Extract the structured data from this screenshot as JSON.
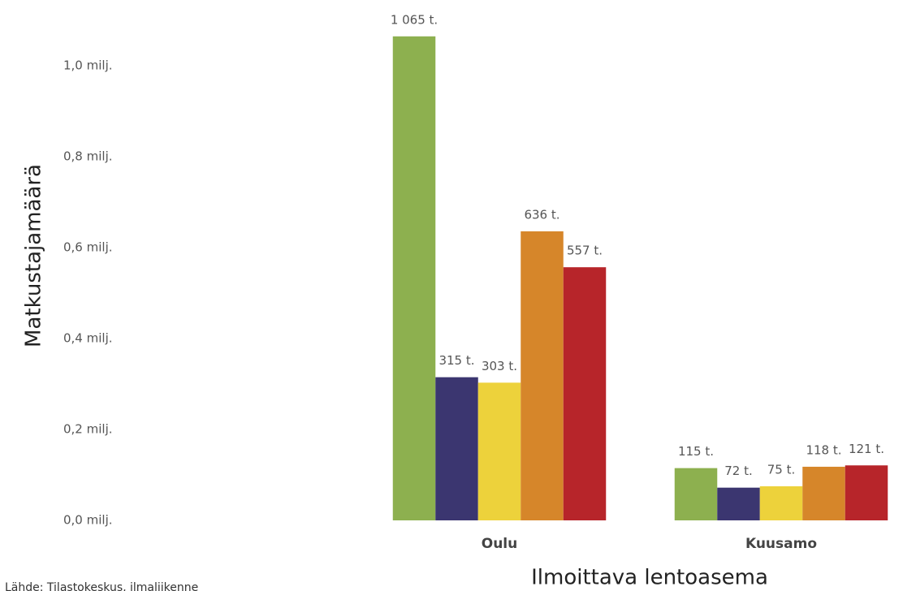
{
  "chart_data": {
    "type": "bar",
    "ylabel": "Matkustajamäärä",
    "xlabel": "Ilmoittava lentoasema",
    "source": "Lähde: Tilastokeskus, ilmaliikenne",
    "categories": [
      "Oulu",
      "Kuusamo"
    ],
    "series": [
      {
        "color": "#8db04f",
        "values": [
          1065000,
          115000
        ],
        "value_labels": [
          "1 065 t.",
          "115 t."
        ]
      },
      {
        "color": "#3b3670",
        "values": [
          315000,
          72000
        ],
        "value_labels": [
          "315 t.",
          "72 t."
        ]
      },
      {
        "color": "#edd23b",
        "values": [
          303000,
          75000
        ],
        "value_labels": [
          "303 t.",
          "75 t."
        ]
      },
      {
        "color": "#d6862a",
        "values": [
          636000,
          118000
        ],
        "value_labels": [
          "636 t.",
          "118 t."
        ]
      },
      {
        "color": "#b7252a",
        "values": [
          557000,
          121000
        ],
        "value_labels": [
          "557 t.",
          "121 t."
        ]
      }
    ],
    "ylim": [
      0,
      1145000
    ],
    "yticks": [
      {
        "value": 0,
        "label": "0,0 milj."
      },
      {
        "value": 200000,
        "label": "0,2 milj."
      },
      {
        "value": 400000,
        "label": "0,4 milj."
      },
      {
        "value": 600000,
        "label": "0,6 milj."
      },
      {
        "value": 800000,
        "label": "0,8 milj."
      },
      {
        "value": 1000000,
        "label": "1,0 milj."
      }
    ],
    "grid": false
  }
}
